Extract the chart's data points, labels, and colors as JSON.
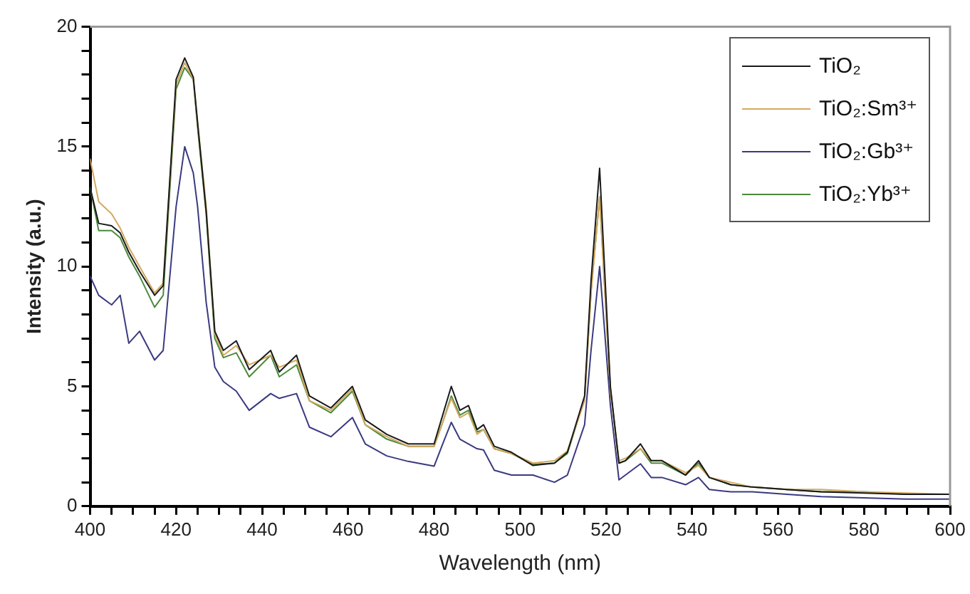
{
  "chart_data": {
    "type": "line",
    "xlabel": "Wavelength (nm)",
    "ylabel": "Intensity (a.u.)",
    "x": [
      400,
      402,
      405,
      407,
      409,
      411.5,
      415,
      417,
      420,
      422,
      424,
      425,
      427,
      429,
      431,
      434,
      437,
      442,
      444,
      448,
      451,
      456,
      461,
      464,
      469,
      474,
      480,
      482,
      484,
      486,
      488,
      490,
      491.5,
      494,
      498,
      503,
      508,
      511,
      515,
      516.5,
      518.5,
      521,
      523,
      524.5,
      528,
      530.5,
      533,
      538.5,
      541.5,
      544,
      549,
      554,
      562,
      570,
      580,
      590,
      600
    ],
    "series": [
      {
        "name": "TiO₂",
        "color": "#1a1a1a",
        "values": [
          13.3,
          11.8,
          11.7,
          11.4,
          10.6,
          9.8,
          8.8,
          9.2,
          17.8,
          18.7,
          17.9,
          16.0,
          12.3,
          7.3,
          6.5,
          6.9,
          5.7,
          6.5,
          5.6,
          6.3,
          4.6,
          4.1,
          5.0,
          3.6,
          3.0,
          2.6,
          2.6,
          3.8,
          5.0,
          4.0,
          4.2,
          3.2,
          3.4,
          2.5,
          2.25,
          1.7,
          1.8,
          2.25,
          4.6,
          9.4,
          14.1,
          5.0,
          1.8,
          1.9,
          2.6,
          1.9,
          1.9,
          1.3,
          1.9,
          1.2,
          0.9,
          0.8,
          0.7,
          0.6,
          0.55,
          0.5,
          0.5
        ]
      },
      {
        "name": "TiO₂:Sm³⁺",
        "color": "#d4a860",
        "values": [
          14.5,
          12.7,
          12.2,
          11.6,
          10.8,
          10.0,
          8.9,
          9.3,
          17.6,
          18.5,
          17.8,
          16.0,
          12.5,
          7.2,
          6.3,
          6.7,
          5.9,
          6.3,
          5.8,
          6.1,
          4.4,
          4.0,
          4.9,
          3.4,
          2.9,
          2.5,
          2.5,
          3.5,
          4.5,
          3.7,
          3.9,
          3.0,
          3.2,
          2.4,
          2.2,
          1.8,
          1.9,
          2.3,
          4.4,
          8.9,
          12.9,
          4.8,
          1.9,
          2.0,
          2.4,
          1.9,
          1.9,
          1.4,
          1.7,
          1.2,
          1.0,
          0.8,
          0.7,
          0.7,
          0.6,
          0.55,
          0.5
        ]
      },
      {
        "name": "TiO₂:Gb³⁺",
        "color": "#3a3a80",
        "values": [
          9.6,
          8.8,
          8.4,
          8.8,
          6.8,
          7.3,
          6.1,
          6.5,
          12.5,
          15.0,
          13.9,
          12.5,
          8.5,
          5.8,
          5.2,
          4.8,
          4.0,
          4.7,
          4.5,
          4.7,
          3.3,
          2.9,
          3.7,
          2.6,
          2.1,
          1.87,
          1.67,
          2.6,
          3.5,
          2.8,
          2.6,
          2.4,
          2.35,
          1.5,
          1.3,
          1.3,
          1.0,
          1.3,
          3.4,
          6.5,
          10.0,
          4.2,
          1.1,
          1.3,
          1.77,
          1.2,
          1.2,
          0.9,
          1.2,
          0.7,
          0.6,
          0.6,
          0.5,
          0.4,
          0.35,
          0.3,
          0.3
        ]
      },
      {
        "name": "TiO₂:Yb³⁺",
        "color": "#4a8a3a",
        "values": [
          13.3,
          11.5,
          11.5,
          11.2,
          10.4,
          9.6,
          8.3,
          8.8,
          17.4,
          18.3,
          17.8,
          15.8,
          12.2,
          7.0,
          6.2,
          6.4,
          5.4,
          6.3,
          5.4,
          5.9,
          4.4,
          3.9,
          4.8,
          3.4,
          2.8,
          2.5,
          2.5,
          3.5,
          4.6,
          3.8,
          4.0,
          3.1,
          3.2,
          2.4,
          2.2,
          1.75,
          1.8,
          2.2,
          4.5,
          9.0,
          12.9,
          4.9,
          1.8,
          1.9,
          2.4,
          1.8,
          1.8,
          1.3,
          1.8,
          1.2,
          0.9,
          0.8,
          0.7,
          0.6,
          0.6,
          0.5,
          0.5
        ]
      }
    ],
    "xlim": [
      400,
      600
    ],
    "xticks": [
      400,
      {
        "value": 405,
        "label": null
      },
      {
        "value": 410,
        "label": null
      },
      {
        "value": 415,
        "label": null
      },
      420,
      {
        "value": 425,
        "label": null
      },
      {
        "value": 430,
        "label": null
      },
      {
        "value": 435,
        "label": null
      },
      440,
      {
        "value": 445,
        "label": null
      },
      {
        "value": 450,
        "label": null
      },
      {
        "value": 455,
        "label": null
      },
      460,
      {
        "value": 465,
        "label": null
      },
      {
        "value": 470,
        "label": null
      },
      {
        "value": 475,
        "label": null
      },
      480,
      {
        "value": 485,
        "label": null
      },
      {
        "value": 490,
        "label": null
      },
      {
        "value": 495,
        "label": null
      },
      500,
      {
        "value": 505,
        "label": null
      },
      {
        "value": 510,
        "label": null
      },
      {
        "value": 515,
        "label": null
      },
      520,
      {
        "value": 525,
        "label": null
      },
      {
        "value": 530,
        "label": null
      },
      {
        "value": 535,
        "label": null
      },
      540,
      {
        "value": 545,
        "label": null
      },
      {
        "value": 550,
        "label": null
      },
      {
        "value": 555,
        "label": null
      },
      560,
      {
        "value": 565,
        "label": null
      },
      {
        "value": 570,
        "label": null
      },
      {
        "value": 575,
        "label": null
      },
      580,
      {
        "value": 585,
        "label": null
      },
      {
        "value": 590,
        "label": null
      },
      {
        "value": 595,
        "label": null
      },
      600
    ],
    "ylim": [
      0,
      20
    ],
    "yticks": [
      0,
      {
        "value": 1,
        "label": null
      },
      {
        "value": 2,
        "label": null
      },
      {
        "value": 3,
        "label": null
      },
      {
        "value": 4,
        "label": null
      },
      5,
      {
        "value": 6,
        "label": null
      },
      {
        "value": 7,
        "label": null
      },
      {
        "value": 8,
        "label": null
      },
      {
        "value": 9,
        "label": null
      },
      10,
      {
        "value": 11,
        "label": null
      },
      {
        "value": 12,
        "label": null
      },
      {
        "value": 13,
        "label": null
      },
      {
        "value": 14,
        "label": null
      },
      15,
      {
        "value": 16,
        "label": null
      },
      {
        "value": 17,
        "label": null
      },
      {
        "value": 18,
        "label": null
      },
      {
        "value": 19,
        "label": null
      },
      20
    ],
    "grid": false,
    "legend": "top right",
    "marker": "none",
    "line_style": "solid"
  }
}
